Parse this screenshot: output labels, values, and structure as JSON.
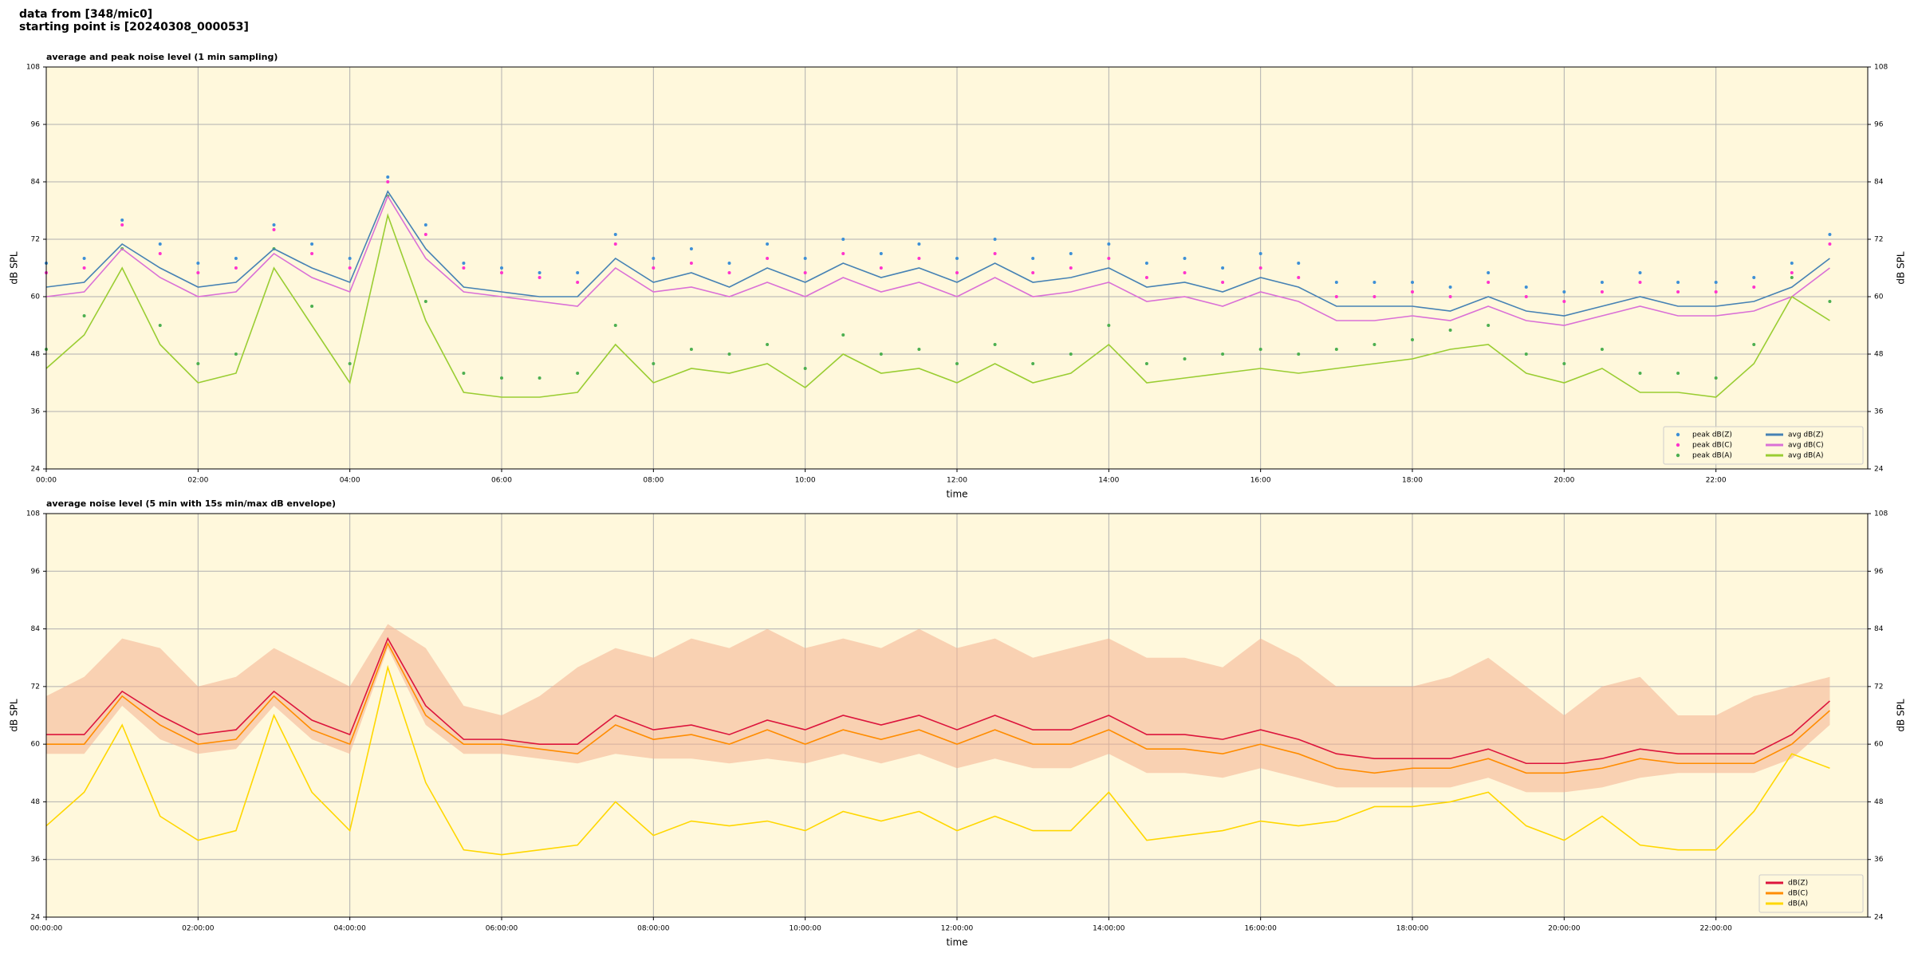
{
  "header": {
    "lines": [
      "data from [348/mic0]",
      "starting point is [20240308_000053]"
    ]
  },
  "chart_data": [
    {
      "type": "line",
      "title": "average and peak noise level (1 min sampling)",
      "xlabel": "time",
      "ylabel": "dB SPL",
      "xlim": [
        0,
        24
      ],
      "ylim": [
        24,
        108
      ],
      "yticks": [
        24,
        36,
        48,
        60,
        72,
        84,
        96,
        108
      ],
      "xticks": [
        {
          "value": 0,
          "label": "00:00"
        },
        {
          "value": 2,
          "label": "02:00"
        },
        {
          "value": 4,
          "label": "04:00"
        },
        {
          "value": 6,
          "label": "06:00"
        },
        {
          "value": 8,
          "label": "08:00"
        },
        {
          "value": 10,
          "label": "10:00"
        },
        {
          "value": 12,
          "label": "12:00"
        },
        {
          "value": 14,
          "label": "14:00"
        },
        {
          "value": 16,
          "label": "16:00"
        },
        {
          "value": 18,
          "label": "18:00"
        },
        {
          "value": 20,
          "label": "20:00"
        },
        {
          "value": 22,
          "label": "22:00"
        }
      ],
      "grid": true,
      "legend": "lower right",
      "legend_columns": 2,
      "x": [
        0,
        0.5,
        1,
        1.5,
        2,
        2.5,
        3,
        3.5,
        4,
        4.5,
        5,
        5.5,
        6,
        6.5,
        7,
        7.5,
        8,
        8.5,
        9,
        9.5,
        10,
        10.5,
        11,
        11.5,
        12,
        12.5,
        13,
        13.5,
        14,
        14.5,
        15,
        15.5,
        16,
        16.5,
        17,
        17.5,
        18,
        18.5,
        19,
        19.5,
        20,
        20.5,
        21,
        21.5,
        22,
        22.5,
        23,
        23.5
      ],
      "series": [
        {
          "name": "peak dB(Z)",
          "style": "points",
          "color": "#3d8fd6",
          "values": [
            67,
            68,
            76,
            71,
            67,
            68,
            75,
            71,
            68,
            85,
            75,
            67,
            66,
            65,
            65,
            73,
            68,
            70,
            67,
            71,
            68,
            72,
            69,
            71,
            68,
            72,
            68,
            69,
            71,
            67,
            68,
            66,
            69,
            67,
            63,
            63,
            63,
            62,
            65,
            62,
            61,
            63,
            65,
            63,
            63,
            64,
            67,
            73
          ]
        },
        {
          "name": "peak dB(C)",
          "style": "points",
          "color": "#ff33cc",
          "values": [
            65,
            66,
            75,
            69,
            65,
            66,
            74,
            69,
            66,
            84,
            73,
            66,
            65,
            64,
            63,
            71,
            66,
            67,
            65,
            68,
            65,
            69,
            66,
            68,
            65,
            69,
            65,
            66,
            68,
            64,
            65,
            63,
            66,
            64,
            60,
            60,
            61,
            60,
            63,
            60,
            59,
            61,
            63,
            61,
            61,
            62,
            65,
            71
          ]
        },
        {
          "name": "peak dB(A)",
          "style": "points",
          "color": "#4caf50",
          "values": [
            49,
            56,
            70,
            54,
            46,
            48,
            70,
            58,
            46,
            81,
            59,
            44,
            43,
            43,
            44,
            54,
            46,
            49,
            48,
            50,
            45,
            52,
            48,
            49,
            46,
            50,
            46,
            48,
            54,
            46,
            47,
            48,
            49,
            48,
            49,
            50,
            51,
            53,
            54,
            48,
            46,
            49,
            44,
            44,
            43,
            50,
            64,
            59
          ]
        },
        {
          "name": "avg dB(Z)",
          "style": "line",
          "color": "#4682b4",
          "values": [
            62,
            63,
            71,
            66,
            62,
            63,
            70,
            66,
            63,
            82,
            70,
            62,
            61,
            60,
            60,
            68,
            63,
            65,
            62,
            66,
            63,
            67,
            64,
            66,
            63,
            67,
            63,
            64,
            66,
            62,
            63,
            61,
            64,
            62,
            58,
            58,
            58,
            57,
            60,
            57,
            56,
            58,
            60,
            58,
            58,
            59,
            62,
            68
          ]
        },
        {
          "name": "avg dB(C)",
          "style": "line",
          "color": "#da70d6",
          "values": [
            60,
            61,
            70,
            64,
            60,
            61,
            69,
            64,
            61,
            81,
            68,
            61,
            60,
            59,
            58,
            66,
            61,
            62,
            60,
            63,
            60,
            64,
            61,
            63,
            60,
            64,
            60,
            61,
            63,
            59,
            60,
            58,
            61,
            59,
            55,
            55,
            56,
            55,
            58,
            55,
            54,
            56,
            58,
            56,
            56,
            57,
            60,
            66
          ]
        },
        {
          "name": "avg dB(A)",
          "style": "line",
          "color": "#9acd32",
          "values": [
            45,
            52,
            66,
            50,
            42,
            44,
            66,
            54,
            42,
            77,
            55,
            40,
            39,
            39,
            40,
            50,
            42,
            45,
            44,
            46,
            41,
            48,
            44,
            45,
            42,
            46,
            42,
            44,
            50,
            42,
            43,
            44,
            45,
            44,
            45,
            46,
            47,
            49,
            50,
            44,
            42,
            45,
            40,
            40,
            39,
            46,
            60,
            55
          ]
        }
      ]
    },
    {
      "type": "line",
      "title": "average noise level (5 min with 15s min/max dB envelope)",
      "xlabel": "time",
      "ylabel": "dB SPL",
      "xlim": [
        0,
        24
      ],
      "ylim": [
        24,
        108
      ],
      "yticks": [
        24,
        36,
        48,
        60,
        72,
        84,
        96,
        108
      ],
      "xticks": [
        {
          "value": 0,
          "label": "00:00:00"
        },
        {
          "value": 2,
          "label": "02:00:00"
        },
        {
          "value": 4,
          "label": "04:00:00"
        },
        {
          "value": 6,
          "label": "06:00:00"
        },
        {
          "value": 8,
          "label": "08:00:00"
        },
        {
          "value": 10,
          "label": "10:00:00"
        },
        {
          "value": 12,
          "label": "12:00:00"
        },
        {
          "value": 14,
          "label": "14:00:00"
        },
        {
          "value": 16,
          "label": "16:00:00"
        },
        {
          "value": 18,
          "label": "18:00:00"
        },
        {
          "value": 20,
          "label": "20:00:00"
        },
        {
          "value": 22,
          "label": "22:00:00"
        }
      ],
      "grid": true,
      "legend": "lower right",
      "legend_columns": 1,
      "x": [
        0,
        0.5,
        1,
        1.5,
        2,
        2.5,
        3,
        3.5,
        4,
        4.5,
        5,
        5.5,
        6,
        6.5,
        7,
        7.5,
        8,
        8.5,
        9,
        9.5,
        10,
        10.5,
        11,
        11.5,
        12,
        12.5,
        13,
        13.5,
        14,
        14.5,
        15,
        15.5,
        16,
        16.5,
        17,
        17.5,
        18,
        18.5,
        19,
        19.5,
        20,
        20.5,
        21,
        21.5,
        22,
        22.5,
        23,
        23.5
      ],
      "envelope": {
        "color": "#f4b090",
        "upper": [
          70,
          74,
          82,
          80,
          72,
          74,
          80,
          76,
          72,
          85,
          80,
          68,
          66,
          70,
          76,
          80,
          78,
          82,
          80,
          84,
          80,
          82,
          80,
          84,
          80,
          82,
          78,
          80,
          82,
          78,
          78,
          76,
          82,
          78,
          72,
          72,
          72,
          74,
          78,
          72,
          66,
          72,
          74,
          66,
          66,
          70,
          72,
          74
        ],
        "lower": [
          58,
          58,
          68,
          61,
          58,
          59,
          68,
          61,
          58,
          80,
          64,
          58,
          58,
          57,
          56,
          58,
          57,
          57,
          56,
          57,
          56,
          58,
          56,
          58,
          55,
          57,
          55,
          55,
          58,
          54,
          54,
          53,
          55,
          53,
          51,
          51,
          51,
          51,
          53,
          50,
          50,
          51,
          53,
          54,
          54,
          54,
          57,
          64
        ]
      },
      "series": [
        {
          "name": "dB(Z)",
          "style": "line",
          "color": "#dc143c",
          "values": [
            62,
            62,
            71,
            66,
            62,
            63,
            71,
            65,
            62,
            82,
            68,
            61,
            61,
            60,
            60,
            66,
            63,
            64,
            62,
            65,
            63,
            66,
            64,
            66,
            63,
            66,
            63,
            63,
            66,
            62,
            62,
            61,
            63,
            61,
            58,
            57,
            57,
            57,
            59,
            56,
            56,
            57,
            59,
            58,
            58,
            58,
            62,
            69
          ]
        },
        {
          "name": "dB(C)",
          "style": "line",
          "color": "#ff8c00",
          "values": [
            60,
            60,
            70,
            64,
            60,
            61,
            70,
            63,
            60,
            81,
            66,
            60,
            60,
            59,
            58,
            64,
            61,
            62,
            60,
            63,
            60,
            63,
            61,
            63,
            60,
            63,
            60,
            60,
            63,
            59,
            59,
            58,
            60,
            58,
            55,
            54,
            55,
            55,
            57,
            54,
            54,
            55,
            57,
            56,
            56,
            56,
            60,
            67
          ]
        },
        {
          "name": "dB(A)",
          "style": "line",
          "color": "#ffd700",
          "values": [
            43,
            50,
            64,
            45,
            40,
            42,
            66,
            50,
            42,
            76,
            52,
            38,
            37,
            38,
            39,
            48,
            41,
            44,
            43,
            44,
            42,
            46,
            44,
            46,
            42,
            45,
            42,
            42,
            50,
            40,
            41,
            42,
            44,
            43,
            44,
            47,
            47,
            48,
            50,
            43,
            40,
            45,
            39,
            38,
            38,
            46,
            58,
            55
          ]
        }
      ]
    }
  ]
}
